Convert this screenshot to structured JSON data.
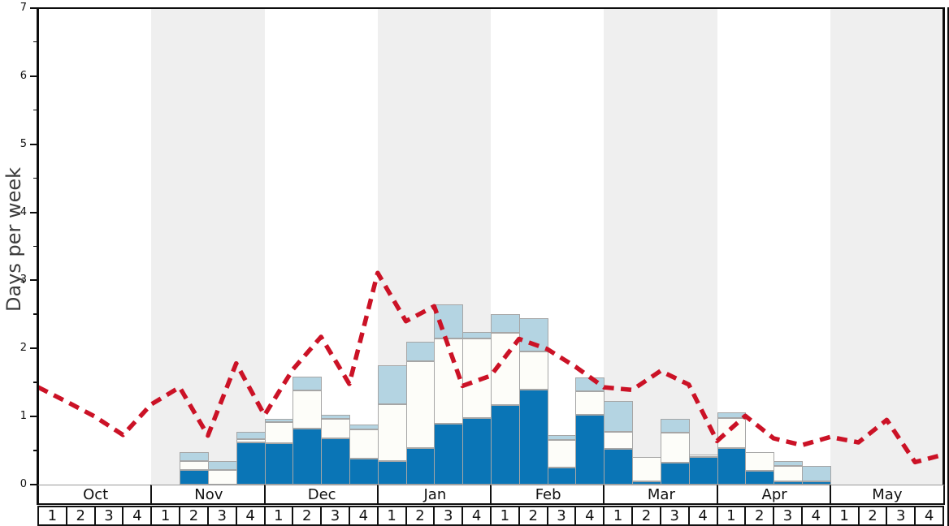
{
  "chart_data": {
    "type": "bar",
    "subtype": "stacked-bars-with-dashed-line",
    "title": "",
    "xlabel": "",
    "ylabel": "Days per week",
    "ylim": [
      0,
      7
    ],
    "yticks": [
      0,
      1,
      2,
      3,
      4,
      5,
      6,
      7
    ],
    "y_minor_tick_step": 0.5,
    "grid": "off",
    "legend": "none",
    "months": [
      "Oct",
      "Nov",
      "Dec",
      "Jan",
      "Feb",
      "Mar",
      "Apr",
      "May"
    ],
    "week_labels": [
      "1",
      "2",
      "3",
      "4"
    ],
    "weeks_per_month": 4,
    "shaded_months": [
      "Nov",
      "Jan",
      "Mar",
      "May"
    ],
    "categories": [
      "Oct1",
      "Oct2",
      "Oct3",
      "Oct4",
      "Nov1",
      "Nov2",
      "Nov3",
      "Nov4",
      "Dec1",
      "Dec2",
      "Dec3",
      "Dec4",
      "Jan1",
      "Jan2",
      "Jan3",
      "Jan4",
      "Feb1",
      "Feb2",
      "Feb3",
      "Feb4",
      "Mar1",
      "Mar2",
      "Mar3",
      "Mar4",
      "Apr1",
      "Apr2",
      "Apr3",
      "Apr4",
      "May1",
      "May2",
      "May3",
      "May4"
    ],
    "series": [
      {
        "name": "bar-bottom-dark-blue",
        "color": "#0a75b6",
        "values": [
          0,
          0,
          0,
          0,
          0,
          0.21,
          0,
          0.62,
          0.61,
          0.82,
          0.68,
          0.38,
          0.35,
          0.54,
          0.9,
          0.98,
          1.17,
          1.39,
          0.25,
          1.02,
          0.52,
          0.05,
          0.32,
          0.41,
          0.54,
          0.2,
          0.05,
          0.05,
          0,
          0,
          0,
          0
        ]
      },
      {
        "name": "bar-middle-white",
        "color": "#fdfdf9",
        "values": [
          0,
          0,
          0,
          0,
          0,
          0.14,
          0.21,
          0.05,
          0.31,
          0.56,
          0.28,
          0.43,
          0.83,
          1.27,
          1.25,
          1.17,
          1.06,
          0.57,
          0.4,
          0.35,
          0.25,
          0.35,
          0.44,
          0.03,
          0.44,
          0.28,
          0.22,
          0,
          0,
          0,
          0,
          0
        ]
      },
      {
        "name": "bar-top-light-blue",
        "color": "#b4d4e2",
        "values": [
          0,
          0,
          0,
          0,
          0,
          0.13,
          0.14,
          0.11,
          0.05,
          0.21,
          0.07,
          0.07,
          0.57,
          0.29,
          0.5,
          0.09,
          0.27,
          0.48,
          0.08,
          0.2,
          0.46,
          0,
          0.2,
          0,
          0.08,
          0,
          0.07,
          0.22,
          0,
          0,
          0,
          0
        ]
      }
    ],
    "line": {
      "name": "red-dashed-line",
      "color": "#cb1226",
      "style": "dashed",
      "x_unit": "week-boundaries (0..32)",
      "values": [
        1.43,
        1.22,
        1.0,
        0.73,
        1.18,
        1.43,
        0.72,
        1.78,
        1.02,
        1.69,
        2.17,
        1.48,
        3.11,
        2.4,
        2.62,
        1.45,
        1.6,
        2.14,
        1.99,
        1.73,
        1.43,
        1.39,
        1.67,
        1.47,
        0.64,
        1.01,
        0.68,
        0.58,
        0.7,
        0.62,
        0.95,
        0.33,
        0.44
      ]
    },
    "colors": {
      "bar_dark_blue": "#0a75b6",
      "bar_white": "#fdfdf9",
      "bar_light_blue": "#b4d4e2",
      "bar_border": "#a6a6a6",
      "line_red": "#cb1226",
      "month_band_gray": "#efefef",
      "background": "#ffffff",
      "spine_black": "#0d0d0d"
    }
  }
}
